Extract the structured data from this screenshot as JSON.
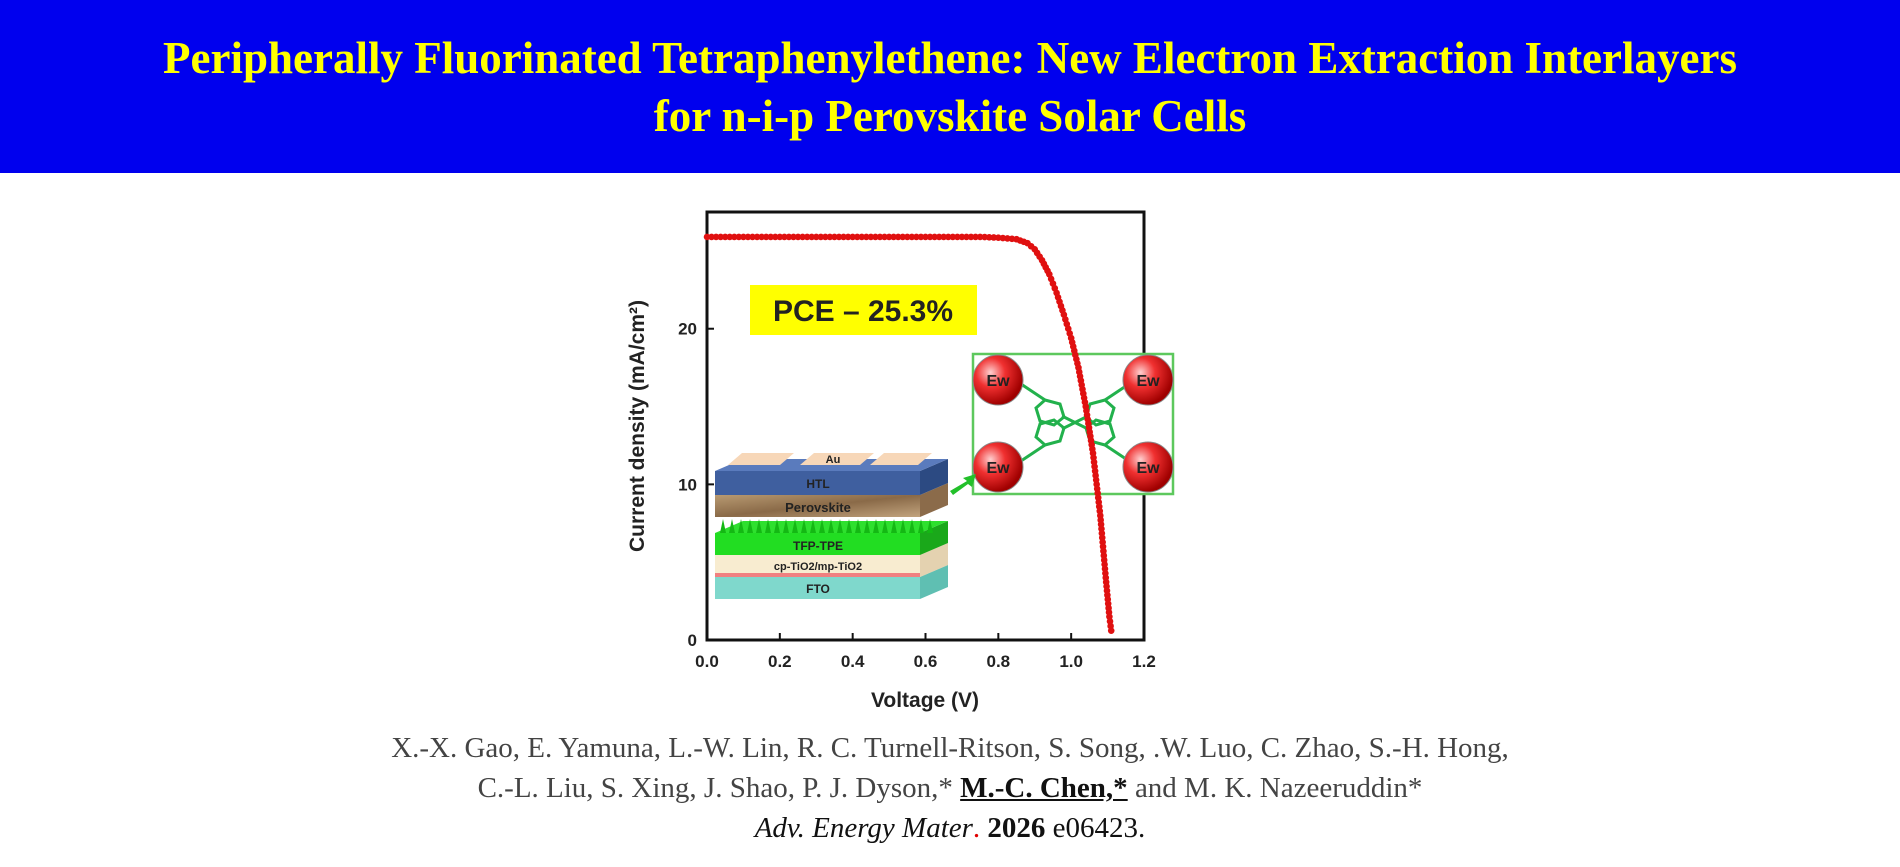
{
  "header": {
    "title_line1": "Peripherally Fluorinated Tetraphenylethene: New Electron Extraction Interlayers",
    "title_line2": "for n-i-p Perovskite Solar Cells"
  },
  "colors": {
    "header_bg": "#0000ee",
    "title_text": "#ffff00",
    "curve": "#e01010",
    "pce_bg": "#ffff00"
  },
  "chart_data": {
    "type": "line",
    "xlabel": "Voltage (V)",
    "ylabel": "Current density (mA/cm²)",
    "xlim": [
      0,
      1.2
    ],
    "ylim": [
      0,
      27.5
    ],
    "x_ticks": [
      0.0,
      0.2,
      0.4,
      0.6,
      0.8,
      1.0,
      1.2
    ],
    "x_tick_labels": [
      "0.0",
      "0.2",
      "0.4",
      "0.6",
      "0.8",
      "1.0",
      "1.2"
    ],
    "y_ticks": [
      0,
      10,
      20
    ],
    "y_tick_labels": [
      "0",
      "10",
      "20"
    ],
    "grid": false,
    "series": [
      {
        "x": [
          0.0,
          0.05,
          0.1,
          0.15,
          0.2,
          0.25,
          0.3,
          0.35,
          0.4,
          0.45,
          0.5,
          0.55,
          0.6,
          0.65,
          0.7,
          0.75,
          0.8,
          0.85,
          0.88,
          0.9,
          0.92,
          0.94,
          0.96,
          0.98,
          1.0,
          1.02,
          1.04,
          1.06,
          1.08,
          1.095,
          1.105,
          1.11
        ],
        "y": [
          25.9,
          25.9,
          25.9,
          25.9,
          25.9,
          25.9,
          25.9,
          25.9,
          25.9,
          25.9,
          25.9,
          25.9,
          25.9,
          25.9,
          25.9,
          25.9,
          25.85,
          25.75,
          25.5,
          25.1,
          24.4,
          23.5,
          22.3,
          20.9,
          19.4,
          17.5,
          15.0,
          12.0,
          8.0,
          4.0,
          1.5,
          0.6
        ]
      }
    ],
    "annotations": [
      "PCE – 25.3%"
    ],
    "device_stack_labels": [
      "Au",
      "HTL",
      "Perovskite",
      "TFP-TPE",
      "cp-TiO2/mp-TiO2",
      "FTO"
    ],
    "molecule_labels": [
      "Ew",
      "Ew",
      "Ew",
      "Ew"
    ]
  },
  "citation": {
    "line1": "X.-X. Gao, E. Yamuna, L.-W. Lin, R. C. Turnell-Ritson, S. Song, .W. Luo, C. Zhao, S.-H. Hong,",
    "line2_pre": "C.-L. Liu, S. Xing, J. Shao, P. J. Dyson,*",
    "highlighted_author": "M.-C. Chen,*",
    "line2_post": "and M. K. Nazeeruddin*",
    "journal": "Adv. Energy Mater",
    "journal_dot": ".",
    "year": "2026",
    "article": "e06423."
  }
}
